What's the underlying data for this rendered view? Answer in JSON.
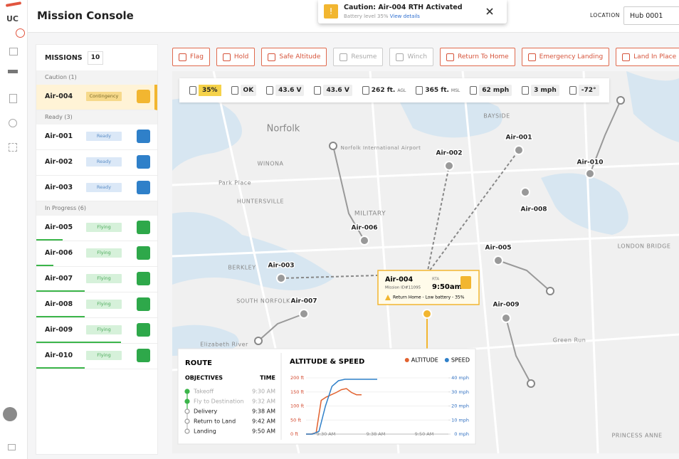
{
  "app": {
    "logo": "UC"
  },
  "header": {
    "title": "Mission Console",
    "location_label": "LOCATION",
    "location_value": "Hub 0001"
  },
  "toast": {
    "title": "Caution: Air-004 RTH Activated",
    "message": "Battery level 35%",
    "link": "View details"
  },
  "missions": {
    "heading": "MISSIONS",
    "count": "10",
    "groups": [
      {
        "label": "Caution (1)",
        "items": [
          {
            "name": "Air-004",
            "status": "Contingency"
          }
        ]
      },
      {
        "label": "Ready (3)",
        "items": [
          {
            "name": "Air-001",
            "status": "Ready"
          },
          {
            "name": "Air-002",
            "status": "Ready"
          },
          {
            "name": "Air-003",
            "status": "Ready"
          }
        ]
      },
      {
        "label": "In Progress (6)",
        "items": [
          {
            "name": "Air-005",
            "status": "Flying",
            "progress": 22
          },
          {
            "name": "Air-006",
            "status": "Flying",
            "progress": 14
          },
          {
            "name": "Air-007",
            "status": "Flying",
            "progress": 40
          },
          {
            "name": "Air-008",
            "status": "Flying",
            "progress": 40
          },
          {
            "name": "Air-009",
            "status": "Flying",
            "progress": 70
          },
          {
            "name": "Air-010",
            "status": "Flying",
            "progress": 40
          }
        ]
      }
    ]
  },
  "toolbar": {
    "buttons": [
      {
        "label": "Flag",
        "enabled": true
      },
      {
        "label": "Hold",
        "enabled": true
      },
      {
        "label": "Safe Altitude",
        "enabled": true
      },
      {
        "label": "Resume",
        "enabled": false
      },
      {
        "label": "Winch",
        "enabled": false
      },
      {
        "label": "Return To Home",
        "enabled": true
      },
      {
        "label": "Emergency Landing",
        "enabled": true
      },
      {
        "label": "Land In Place",
        "enabled": true
      }
    ]
  },
  "telemetry": {
    "battery": "35%",
    "signal": "OK",
    "voltage_1": "43.6 V",
    "voltage_2": "43.6 V",
    "agl_value": "262 ft.",
    "agl_unit": "AGL",
    "msl_value": "365 ft.",
    "msl_unit": "MSL",
    "ground_speed": "62 mph",
    "wind_speed": "3 mph",
    "heading": "-72°"
  },
  "map": {
    "places": [
      "Norfolk",
      "BAYSIDE",
      "Norfolk International Airport",
      "WINONA",
      "Park Place",
      "HUNTERSVILLE",
      "MILITARY",
      "BERKLEY",
      "SOUTH NORFOLK",
      "LONDON BRIDGE",
      "PRINCESS ANNE",
      "Elizabeth River",
      "Green Run"
    ],
    "drones": [
      "Air-001",
      "Air-002",
      "Air-003",
      "Air-005",
      "Air-006",
      "Air-007",
      "Air-008",
      "Air-009",
      "Air-010"
    ]
  },
  "popup": {
    "name": "Air-004",
    "mission": "Mission ID#11095",
    "rta_label": "RTA",
    "rta_time": "9:50am",
    "status": "Return Home - Low battery - 35%"
  },
  "route": {
    "title": "ROUTE",
    "objectives_label": "OBJECTIVES",
    "time_label": "TIME",
    "objectives": [
      {
        "name": "Takeoff",
        "time": "9:30 AM",
        "completed": true
      },
      {
        "name": "Fly to Destination",
        "time": "9:32 AM",
        "completed": true
      },
      {
        "name": "Delivery",
        "time": "9:38 AM",
        "completed": false
      },
      {
        "name": "Return to Land",
        "time": "9:42 AM",
        "completed": false
      },
      {
        "name": "Landing",
        "time": "9:50 AM",
        "completed": false
      }
    ]
  },
  "chart_data": {
    "type": "line",
    "title": "ALTITUDE & SPEED",
    "x_labels": [
      "9:30 AM",
      "9:38 AM",
      "9:50 AM"
    ],
    "series": [
      {
        "name": "ALTITUDE",
        "color": "#e2622f",
        "values": [
          0,
          0,
          5,
          120,
          132,
          140,
          148,
          158,
          162,
          148,
          140,
          140
        ]
      },
      {
        "name": "SPEED",
        "color": "#2f80c9",
        "axis": "y2",
        "values": [
          0,
          0,
          2,
          20,
          34,
          38,
          39,
          39,
          39,
          39,
          39,
          39
        ]
      }
    ],
    "ylim": [
      0,
      200
    ],
    "yticks": [
      {
        "value": 0,
        "label": "0 ft"
      },
      {
        "value": 50,
        "label": "50 ft"
      },
      {
        "value": 100,
        "label": "100 ft"
      },
      {
        "value": 150,
        "label": "150 ft"
      },
      {
        "value": 200,
        "label": "200 ft"
      }
    ],
    "y2lim": [
      0,
      40
    ],
    "y2ticks": [
      {
        "value": 0,
        "label": "0 mph"
      },
      {
        "value": 10,
        "label": "10 mph"
      },
      {
        "value": 20,
        "label": "20 mph"
      },
      {
        "value": 30,
        "label": "30 mph"
      },
      {
        "value": 40,
        "label": "40 mph"
      }
    ]
  }
}
